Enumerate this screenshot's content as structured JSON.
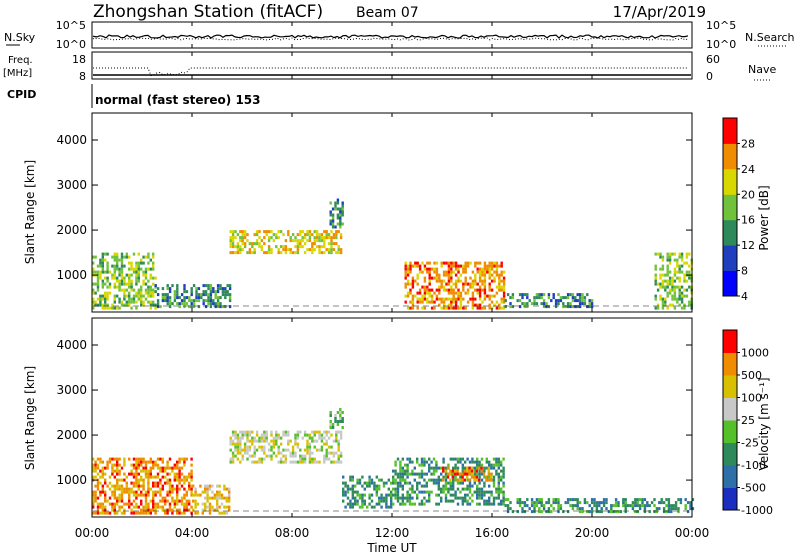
{
  "header": {
    "station": "Zhongshan Station (fitACF)",
    "beam": "Beam 07",
    "date": "17/Apr/2019"
  },
  "noise_panel": {
    "left_label": "N.Sky",
    "right_label": "N.Search",
    "left_ticks": [
      "10^5",
      "10^0"
    ],
    "right_ticks": [
      "10^5",
      "10^0"
    ]
  },
  "freq_panel": {
    "left_label_1": "Freq.",
    "left_label_2": "[MHz]",
    "right_label": "Nave",
    "left_ticks": [
      "18",
      "8"
    ],
    "right_ticks": [
      "60",
      "0"
    ]
  },
  "cpid": {
    "label": "CPID",
    "text": "normal (fast stereo) 153"
  },
  "power_panel": {
    "ylabel": "Slant Range [km]",
    "yticks": [
      "4000",
      "3000",
      "2000",
      "1000"
    ],
    "colorbar_label": "Power [dB]",
    "colorbar_ticks": [
      "28",
      "24",
      "20",
      "16",
      "12",
      "8",
      "4"
    ],
    "colors": [
      "#0000ff",
      "#1f3fbf",
      "#2e8a5a",
      "#6fc23a",
      "#d8d800",
      "#f08c00",
      "#ff0000"
    ]
  },
  "velocity_panel": {
    "ylabel": "Slant Range [km]",
    "yticks": [
      "4000",
      "3000",
      "2000",
      "1000"
    ],
    "colorbar_label": "Velocity [m s⁻¹]",
    "colorbar_ticks": [
      "1000",
      "500",
      "100",
      "25",
      "-25",
      "-100",
      "-500",
      "-1000"
    ],
    "colors": [
      "#1a2fbf",
      "#2e6fa8",
      "#2e8a5a",
      "#55c02a",
      "#c8c8c8",
      "#d8c000",
      "#f08c00",
      "#ff0000"
    ]
  },
  "x_axis": {
    "ticks": [
      "00:00",
      "04:00",
      "08:00",
      "12:00",
      "16:00",
      "20:00",
      "00:00"
    ],
    "label": "Time UT"
  },
  "chart_data": [
    {
      "type": "heatmap",
      "variable": "power",
      "unit": "dB",
      "xlabel": "Time UT",
      "ylabel": "Slant Range [km]",
      "xlim": [
        0,
        24
      ],
      "ylim": [
        180,
        4600
      ],
      "colorbar": [
        4,
        8,
        12,
        16,
        20,
        24,
        28
      ],
      "regions": [
        {
          "t": [
            0,
            2.5
          ],
          "r": [
            300,
            1500
          ],
          "level": 3
        },
        {
          "t": [
            2.5,
            5.5
          ],
          "r": [
            300,
            800
          ],
          "level": 2
        },
        {
          "t": [
            5.5,
            10
          ],
          "r": [
            1500,
            2000
          ],
          "level": 4
        },
        {
          "t": [
            9.5,
            10
          ],
          "r": [
            2100,
            2700
          ],
          "level": 2
        },
        {
          "t": [
            12.5,
            16.5
          ],
          "r": [
            300,
            1300
          ],
          "level": 5
        },
        {
          "t": [
            16.5,
            20
          ],
          "r": [
            300,
            600
          ],
          "level": 2
        },
        {
          "t": [
            22.5,
            24
          ],
          "r": [
            300,
            1500
          ],
          "level": 3
        }
      ]
    },
    {
      "type": "heatmap",
      "variable": "velocity",
      "unit": "m s-1",
      "xlabel": "Time UT",
      "ylabel": "Slant Range [km]",
      "xlim": [
        0,
        24
      ],
      "ylim": [
        180,
        4600
      ],
      "colorbar": [
        1000,
        500,
        100,
        25,
        -25,
        -100,
        -500,
        -1000
      ],
      "regions": [
        {
          "t": [
            0,
            4
          ],
          "r": [
            300,
            1500
          ],
          "level": 6
        },
        {
          "t": [
            4,
            5.5
          ],
          "r": [
            300,
            900
          ],
          "level": 5
        },
        {
          "t": [
            5.5,
            10
          ],
          "r": [
            1400,
            2100
          ],
          "level": 4
        },
        {
          "t": [
            9.5,
            10
          ],
          "r": [
            2200,
            2600
          ],
          "level": 3
        },
        {
          "t": [
            10,
            12
          ],
          "r": [
            400,
            1100
          ],
          "level": 2
        },
        {
          "t": [
            12,
            16.5
          ],
          "r": [
            500,
            1500
          ],
          "level": 2
        },
        {
          "t": [
            14,
            16
          ],
          "r": [
            1000,
            1300
          ],
          "level": 6
        },
        {
          "t": [
            16.5,
            24
          ],
          "r": [
            300,
            600
          ],
          "level": 2
        }
      ]
    }
  ]
}
